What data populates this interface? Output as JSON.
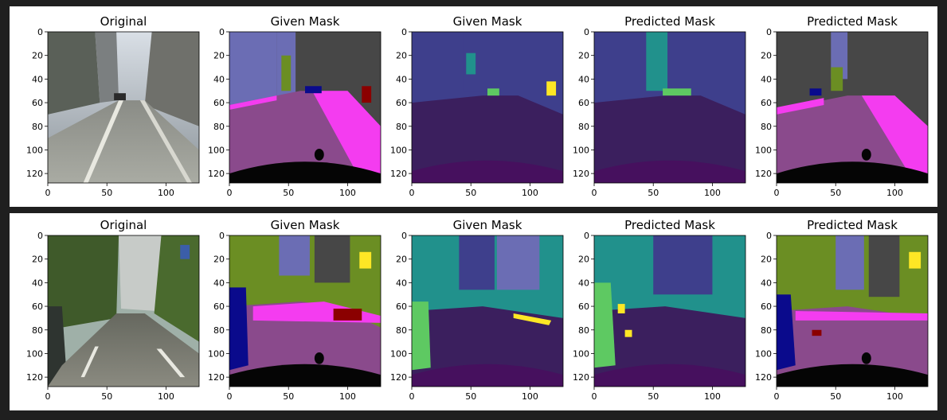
{
  "rows": [
    {
      "panels": [
        {
          "title": "Original",
          "kind": "photo-street-1"
        },
        {
          "title": "Given Mask",
          "kind": "mask-color-1"
        },
        {
          "title": "Given Mask",
          "kind": "mask-purple-1"
        },
        {
          "title": "Predicted Mask",
          "kind": "pred-purple-1"
        },
        {
          "title": "Predicted Mask",
          "kind": "pred-color-1"
        }
      ]
    },
    {
      "panels": [
        {
          "title": "Original",
          "kind": "photo-street-2"
        },
        {
          "title": "Given Mask",
          "kind": "mask-color-2"
        },
        {
          "title": "Given Mask",
          "kind": "mask-purple-2"
        },
        {
          "title": "Predicted Mask",
          "kind": "pred-purple-2"
        },
        {
          "title": "Predicted Mask",
          "kind": "pred-color-2"
        }
      ]
    }
  ],
  "axes": {
    "y_ticks": [
      "0",
      "20",
      "40",
      "60",
      "80",
      "100",
      "120"
    ],
    "x_ticks": [
      "0",
      "50",
      "100"
    ]
  },
  "colors": {
    "road_magenta": "#8a4a8c",
    "sidewalk_pink": "#f43cf0",
    "building_gray": "#474747",
    "sky_lavender": "#6b6db4",
    "vegetation_olive": "#6b8e23",
    "car_navy": "#0a0a8c",
    "ego_black": "#050505",
    "purple_bg": "#46105e",
    "purple_road": "#3b1f5e",
    "purple_wall": "#3e3f8c",
    "teal": "#21918c",
    "green": "#5ec962",
    "yellow": "#fde725"
  }
}
